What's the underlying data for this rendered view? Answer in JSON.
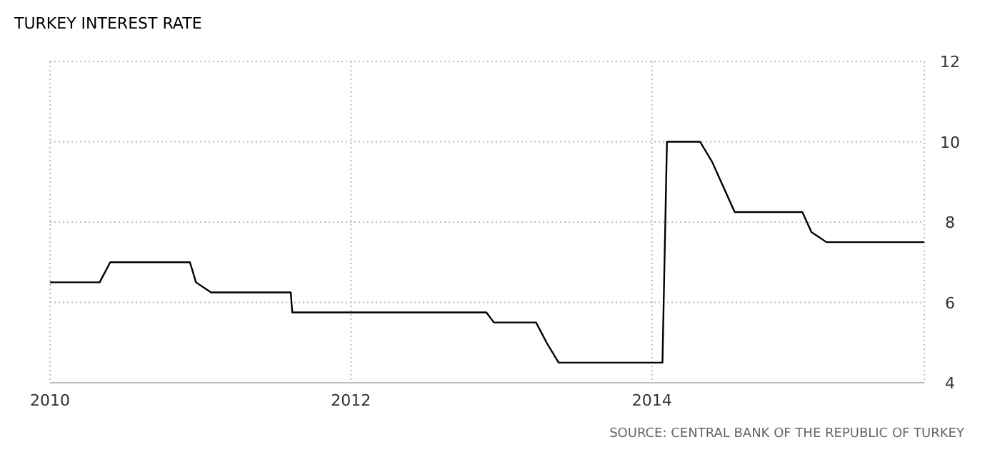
{
  "chart_data": {
    "type": "line",
    "title": "TURKEY INTEREST RATE",
    "x": [
      2010.0,
      2010.33,
      2010.4,
      2010.93,
      2010.97,
      2011.07,
      2011.6,
      2011.61,
      2012.9,
      2012.95,
      2013.23,
      2013.3,
      2013.38,
      2014.07,
      2014.1,
      2014.32,
      2014.4,
      2014.55,
      2015.0,
      2015.06,
      2015.16,
      2015.81
    ],
    "series": [
      {
        "color": "#000000",
        "values": [
          6.5,
          6.5,
          7,
          7,
          6.5,
          6.25,
          6.25,
          5.75,
          5.75,
          5.5,
          5.5,
          5,
          4.5,
          4.5,
          10,
          10,
          9.5,
          8.25,
          8.25,
          7.75,
          7.5,
          7.5
        ]
      }
    ],
    "xlim": [
      2010,
      2015.81
    ],
    "xticks": [
      2010,
      2012,
      2014
    ],
    "ylim": [
      4,
      12
    ],
    "yticks": [
      4,
      6,
      8,
      10,
      12
    ],
    "grid": true,
    "line_style": "solid",
    "marker": "none",
    "annotations": [
      "SOURCE: CENTRAL BANK OF THE REPUBLIC OF TURKEY"
    ]
  }
}
